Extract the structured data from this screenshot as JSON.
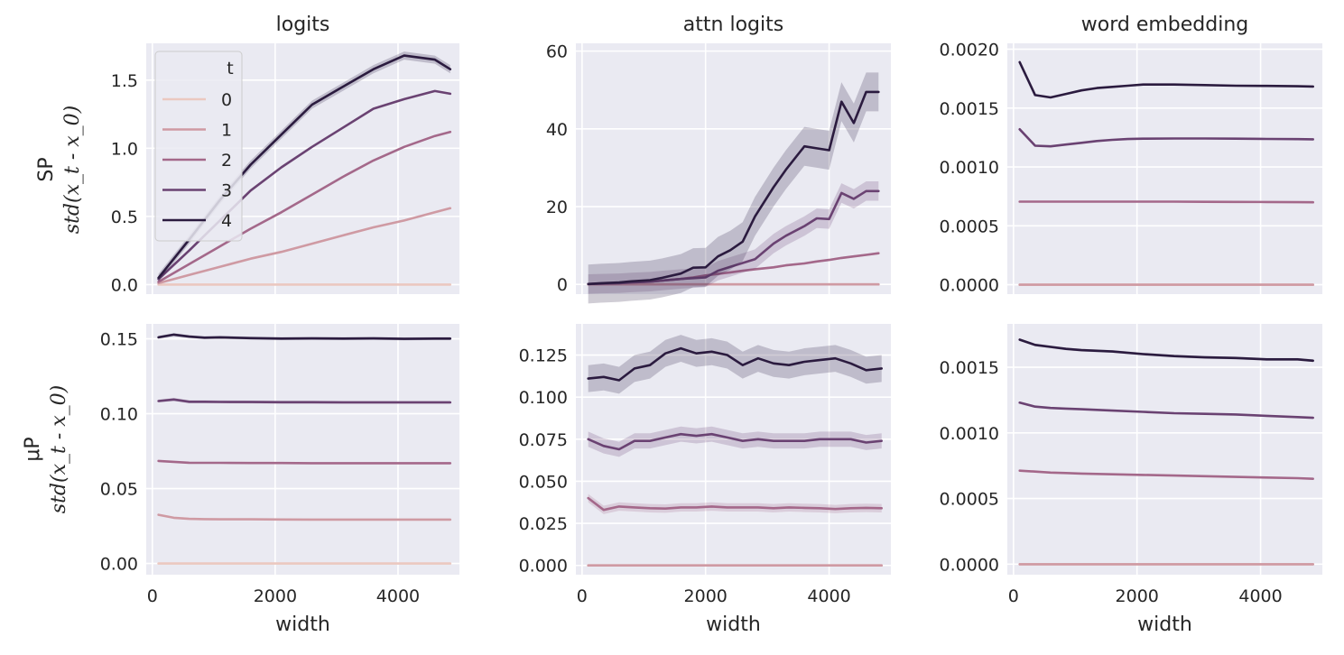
{
  "figure": {
    "row_labels": [
      {
        "line1": "SP",
        "line2": "std(x_t - x_0)"
      },
      {
        "line1": "μP",
        "line2": "std(x_t - x_0)"
      }
    ]
  },
  "legend": {
    "title": "t",
    "entries": [
      "0",
      "1",
      "2",
      "3",
      "4"
    ]
  },
  "colors": {
    "plot_bg": "#eaeaf2",
    "grid": "#ffffff",
    "series": [
      "#ebc8c0",
      "#cf9aa3",
      "#a4688a",
      "#6a4272",
      "#2b1b3f"
    ]
  },
  "chart_data": [
    {
      "type": "line",
      "title": "logits",
      "xlabel": "",
      "ylabel": "SP std(x_t - x_0)",
      "xlim": [
        -100,
        5000
      ],
      "ylim": [
        -0.07,
        1.77
      ],
      "xticks": [
        0,
        2000,
        4000
      ],
      "yticks": [
        0.0,
        0.5,
        1.0,
        1.5
      ],
      "ytick_labels": [
        "0.0",
        "0.5",
        "1.0",
        "1.5"
      ],
      "legend": "upper-left",
      "x": [
        100,
        600,
        1100,
        1600,
        2100,
        2600,
        3100,
        3600,
        4100,
        4600,
        4850
      ],
      "series": [
        {
          "name": "0",
          "values": [
            0,
            0,
            0,
            0,
            0,
            0,
            0,
            0,
            0,
            0,
            0
          ]
        },
        {
          "name": "1",
          "values": [
            0.01,
            0.07,
            0.13,
            0.19,
            0.24,
            0.3,
            0.36,
            0.42,
            0.47,
            0.53,
            0.56
          ]
        },
        {
          "name": "2",
          "values": [
            0.02,
            0.15,
            0.28,
            0.41,
            0.53,
            0.66,
            0.79,
            0.91,
            1.01,
            1.09,
            1.12
          ]
        },
        {
          "name": "3",
          "values": [
            0.04,
            0.25,
            0.47,
            0.69,
            0.86,
            1.01,
            1.15,
            1.29,
            1.36,
            1.42,
            1.4
          ]
        },
        {
          "name": "4",
          "values": [
            0.05,
            0.33,
            0.62,
            0.88,
            1.1,
            1.32,
            1.45,
            1.58,
            1.68,
            1.65,
            1.58
          ],
          "band": 0.03
        }
      ]
    },
    {
      "type": "line",
      "title": "attn logits",
      "xlabel": "",
      "ylabel": "",
      "xlim": [
        -100,
        5000
      ],
      "ylim": [
        -2.5,
        62
      ],
      "xticks": [
        0,
        2000,
        4000
      ],
      "yticks": [
        0,
        20,
        40,
        60
      ],
      "ytick_labels": [
        "0",
        "20",
        "40",
        "60"
      ],
      "x": [
        100,
        300,
        600,
        800,
        1100,
        1300,
        1600,
        1800,
        2000,
        2200,
        2400,
        2600,
        2800,
        3100,
        3300,
        3600,
        3800,
        4000,
        4200,
        4400,
        4600,
        4800
      ],
      "series": [
        {
          "name": "0",
          "values": [
            0,
            0,
            0,
            0,
            0,
            0,
            0,
            0,
            0,
            0,
            0,
            0,
            0,
            0,
            0,
            0,
            0,
            0,
            0,
            0,
            0,
            0
          ]
        },
        {
          "name": "1",
          "values": [
            0,
            0,
            0,
            0,
            0,
            0,
            0,
            0,
            0,
            0,
            0,
            0,
            0,
            0,
            0,
            0,
            0,
            0,
            0,
            0,
            0,
            0
          ]
        },
        {
          "name": "2",
          "values": [
            0.1,
            0.2,
            0.4,
            0.5,
            0.7,
            1.0,
            1.4,
            1.8,
            2.3,
            2.7,
            3.1,
            3.5,
            3.9,
            4.4,
            4.9,
            5.4,
            5.9,
            6.3,
            6.8,
            7.2,
            7.6,
            8.0
          ],
          "band": 0.3
        },
        {
          "name": "3",
          "values": [
            0.1,
            0.2,
            0.3,
            0.5,
            0.7,
            1.0,
            1.4,
            1.6,
            1.8,
            3.5,
            4.5,
            5.5,
            6.5,
            10.5,
            12.5,
            15.0,
            17.0,
            16.8,
            23.5,
            22.0,
            24.0,
            24.0
          ],
          "band": 2.5
        },
        {
          "name": "4",
          "values": [
            0.1,
            0.3,
            0.5,
            0.8,
            1.1,
            1.7,
            2.8,
            4.3,
            4.4,
            7.2,
            8.8,
            11.0,
            17.5,
            25.0,
            29.5,
            35.5,
            35.0,
            34.5,
            47.0,
            41.5,
            49.5,
            49.5
          ],
          "band": 5.0
        }
      ]
    },
    {
      "type": "line",
      "title": "word embedding",
      "xlabel": "",
      "ylabel": "",
      "xlim": [
        -100,
        5000
      ],
      "ylim": [
        -8e-05,
        0.00205
      ],
      "xticks": [
        0,
        2000,
        4000
      ],
      "yticks": [
        0.0,
        0.0005,
        0.001,
        0.0015,
        0.002
      ],
      "ytick_labels": [
        "0.0000",
        "0.0005",
        "0.0010",
        "0.0015",
        "0.0020"
      ],
      "x": [
        100,
        350,
        600,
        850,
        1100,
        1350,
        1600,
        1850,
        2100,
        2600,
        3100,
        3600,
        4100,
        4600,
        4850
      ],
      "series": [
        {
          "name": "0",
          "values": [
            0,
            0,
            0,
            0,
            0,
            0,
            0,
            0,
            0,
            0,
            0,
            0,
            0,
            0,
            0
          ]
        },
        {
          "name": "1",
          "values": [
            0,
            0,
            0,
            0,
            0,
            0,
            0,
            0,
            0,
            0,
            0,
            0,
            0,
            0,
            0
          ]
        },
        {
          "name": "2",
          "values": [
            0.000705,
            0.000705,
            0.000705,
            0.000705,
            0.000705,
            0.000705,
            0.000705,
            0.000705,
            0.000705,
            0.000705,
            0.000704,
            0.000703,
            0.000702,
            0.000701,
            0.0007
          ]
        },
        {
          "name": "3",
          "values": [
            0.00132,
            0.00118,
            0.001175,
            0.00119,
            0.001205,
            0.00122,
            0.00123,
            0.001237,
            0.00124,
            0.001242,
            0.001242,
            0.00124,
            0.001238,
            0.001236,
            0.001235
          ]
        },
        {
          "name": "4",
          "values": [
            0.00189,
            0.00161,
            0.00159,
            0.00162,
            0.00165,
            0.00167,
            0.00168,
            0.00169,
            0.0017,
            0.0017,
            0.001695,
            0.00169,
            0.001688,
            0.001685,
            0.001683
          ]
        }
      ]
    },
    {
      "type": "line",
      "title": "",
      "xlabel": "width",
      "ylabel": "μP std(x_t - x_0)",
      "xlim": [
        -100,
        5000
      ],
      "ylim": [
        -0.0075,
        0.16
      ],
      "xticks": [
        0,
        2000,
        4000
      ],
      "xtick_labels": [
        "0",
        "2000",
        "4000"
      ],
      "yticks": [
        0.0,
        0.05,
        0.1,
        0.15
      ],
      "ytick_labels": [
        "0.00",
        "0.05",
        "0.10",
        "0.15"
      ],
      "x": [
        100,
        350,
        600,
        850,
        1100,
        1600,
        2100,
        2600,
        3100,
        3600,
        4100,
        4600,
        4850
      ],
      "series": [
        {
          "name": "0",
          "values": [
            0,
            0,
            0,
            0,
            0,
            0,
            0,
            0,
            0,
            0,
            0,
            0,
            0
          ]
        },
        {
          "name": "1",
          "values": [
            0.0325,
            0.0305,
            0.0298,
            0.0296,
            0.0295,
            0.0295,
            0.0294,
            0.0293,
            0.0293,
            0.0293,
            0.0293,
            0.0293,
            0.0293
          ]
        },
        {
          "name": "2",
          "values": [
            0.0685,
            0.0679,
            0.0673,
            0.0672,
            0.0672,
            0.0671,
            0.0671,
            0.067,
            0.067,
            0.067,
            0.067,
            0.067,
            0.067
          ]
        },
        {
          "name": "3",
          "values": [
            0.1085,
            0.1095,
            0.108,
            0.108,
            0.1079,
            0.1078,
            0.1077,
            0.1077,
            0.1076,
            0.1076,
            0.1076,
            0.1076,
            0.1076
          ],
          "band": 0.001
        },
        {
          "name": "4",
          "values": [
            0.151,
            0.1528,
            0.1515,
            0.1508,
            0.151,
            0.1505,
            0.1502,
            0.1503,
            0.1502,
            0.1503,
            0.15,
            0.1502,
            0.1502
          ],
          "band": 0.001
        }
      ]
    },
    {
      "type": "line",
      "title": "",
      "xlabel": "width",
      "ylabel": "",
      "xlim": [
        -100,
        5000
      ],
      "ylim": [
        -0.0055,
        0.1435
      ],
      "xticks": [
        0,
        2000,
        4000
      ],
      "xtick_labels": [
        "0",
        "2000",
        "4000"
      ],
      "yticks": [
        0.0,
        0.025,
        0.05,
        0.075,
        0.1,
        0.125
      ],
      "ytick_labels": [
        "0.000",
        "0.025",
        "0.050",
        "0.075",
        "0.100",
        "0.125"
      ],
      "x": [
        100,
        350,
        600,
        850,
        1100,
        1350,
        1600,
        1850,
        2100,
        2350,
        2600,
        2850,
        3100,
        3350,
        3600,
        3850,
        4100,
        4350,
        4600,
        4850
      ],
      "series": [
        {
          "name": "0",
          "values": [
            0,
            0,
            0,
            0,
            0,
            0,
            0,
            0,
            0,
            0,
            0,
            0,
            0,
            0,
            0,
            0,
            0,
            0,
            0,
            0
          ]
        },
        {
          "name": "1",
          "values": [
            0,
            0,
            0,
            0,
            0,
            0,
            0,
            0,
            0,
            0,
            0,
            0,
            0,
            0,
            0,
            0,
            0,
            0,
            0,
            0
          ]
        },
        {
          "name": "2",
          "values": [
            0.04,
            0.033,
            0.035,
            0.0345,
            0.034,
            0.0338,
            0.0345,
            0.0345,
            0.035,
            0.0345,
            0.0345,
            0.0345,
            0.034,
            0.0345,
            0.0342,
            0.034,
            0.0335,
            0.034,
            0.0342,
            0.034
          ],
          "band": 0.0025
        },
        {
          "name": "3",
          "values": [
            0.075,
            0.071,
            0.069,
            0.074,
            0.074,
            0.076,
            0.078,
            0.077,
            0.078,
            0.076,
            0.074,
            0.075,
            0.074,
            0.074,
            0.074,
            0.075,
            0.075,
            0.075,
            0.073,
            0.074
          ],
          "band": 0.0045
        },
        {
          "name": "4",
          "values": [
            0.111,
            0.112,
            0.11,
            0.117,
            0.119,
            0.126,
            0.129,
            0.126,
            0.127,
            0.125,
            0.119,
            0.123,
            0.12,
            0.119,
            0.121,
            0.122,
            0.123,
            0.12,
            0.116,
            0.117
          ],
          "band": 0.008
        }
      ]
    },
    {
      "type": "line",
      "title": "",
      "xlabel": "width",
      "ylabel": "",
      "xlim": [
        -100,
        5000
      ],
      "ylim": [
        -8e-05,
        0.00183
      ],
      "xticks": [
        0,
        2000,
        4000
      ],
      "xtick_labels": [
        "0",
        "2000",
        "4000"
      ],
      "yticks": [
        0.0,
        0.0005,
        0.001,
        0.0015
      ],
      "ytick_labels": [
        "0.0000",
        "0.0005",
        "0.0010",
        "0.0015"
      ],
      "x": [
        100,
        350,
        600,
        850,
        1100,
        1600,
        2100,
        2600,
        3100,
        3600,
        4100,
        4600,
        4850
      ],
      "series": [
        {
          "name": "0",
          "values": [
            0,
            0,
            0,
            0,
            0,
            0,
            0,
            0,
            0,
            0,
            0,
            0,
            0
          ]
        },
        {
          "name": "1",
          "values": [
            0,
            0,
            0,
            0,
            0,
            0,
            0,
            0,
            0,
            0,
            0,
            0,
            0
          ]
        },
        {
          "name": "2",
          "values": [
            0.000712,
            0.000705,
            0.000698,
            0.000694,
            0.00069,
            0.000685,
            0.00068,
            0.000675,
            0.00067,
            0.000665,
            0.00066,
            0.000655,
            0.00065
          ]
        },
        {
          "name": "3",
          "values": [
            0.00123,
            0.0012,
            0.00119,
            0.001185,
            0.00118,
            0.00117,
            0.00116,
            0.00115,
            0.001145,
            0.00114,
            0.00113,
            0.00112,
            0.001115
          ]
        },
        {
          "name": "4",
          "values": [
            0.00171,
            0.00167,
            0.001655,
            0.00164,
            0.00163,
            0.00162,
            0.0016,
            0.001585,
            0.001575,
            0.00157,
            0.00156,
            0.00156,
            0.00155
          ],
          "band": 1e-05
        }
      ]
    }
  ]
}
